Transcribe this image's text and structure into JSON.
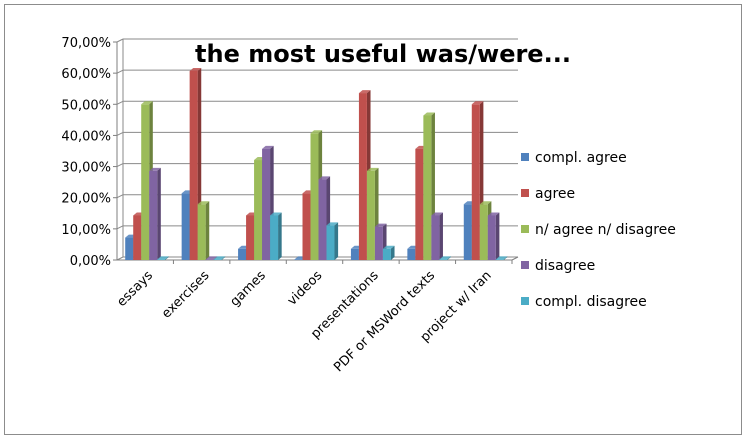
{
  "chart_data": {
    "type": "bar",
    "title": "the most useful was/were...",
    "categories": [
      "essays",
      "exercises",
      "games",
      "videos",
      "presentations",
      "PDF or MSWord texts",
      "project w/ Iran"
    ],
    "series": [
      {
        "name": "compl. agree",
        "values": [
          7.2,
          21.4,
          3.6,
          0,
          3.6,
          3.6,
          17.9
        ],
        "color": "#4f81bd"
      },
      {
        "name": "agree",
        "values": [
          14.3,
          60.7,
          14.3,
          21.4,
          53.6,
          35.7,
          50.0
        ],
        "color": "#c0504d"
      },
      {
        "name": "n/ agree n/ disagree",
        "values": [
          50.0,
          17.9,
          32.1,
          40.7,
          28.6,
          46.4,
          17.9
        ],
        "color": "#9bbb59"
      },
      {
        "name": "disagree",
        "values": [
          28.6,
          0,
          35.7,
          25.9,
          10.7,
          14.3,
          14.3
        ],
        "color": "#8064a2"
      },
      {
        "name": "compl. disagree",
        "values": [
          0,
          0,
          14.3,
          11.1,
          3.6,
          0,
          0
        ],
        "color": "#4bacc6"
      }
    ],
    "yticks": [
      "0,00%",
      "10,00%",
      "20,00%",
      "30,00%",
      "40,00%",
      "50,00%",
      "60,00%",
      "70,00%"
    ],
    "ylim": [
      0,
      70
    ],
    "grid": true,
    "legend_position": "right"
  }
}
